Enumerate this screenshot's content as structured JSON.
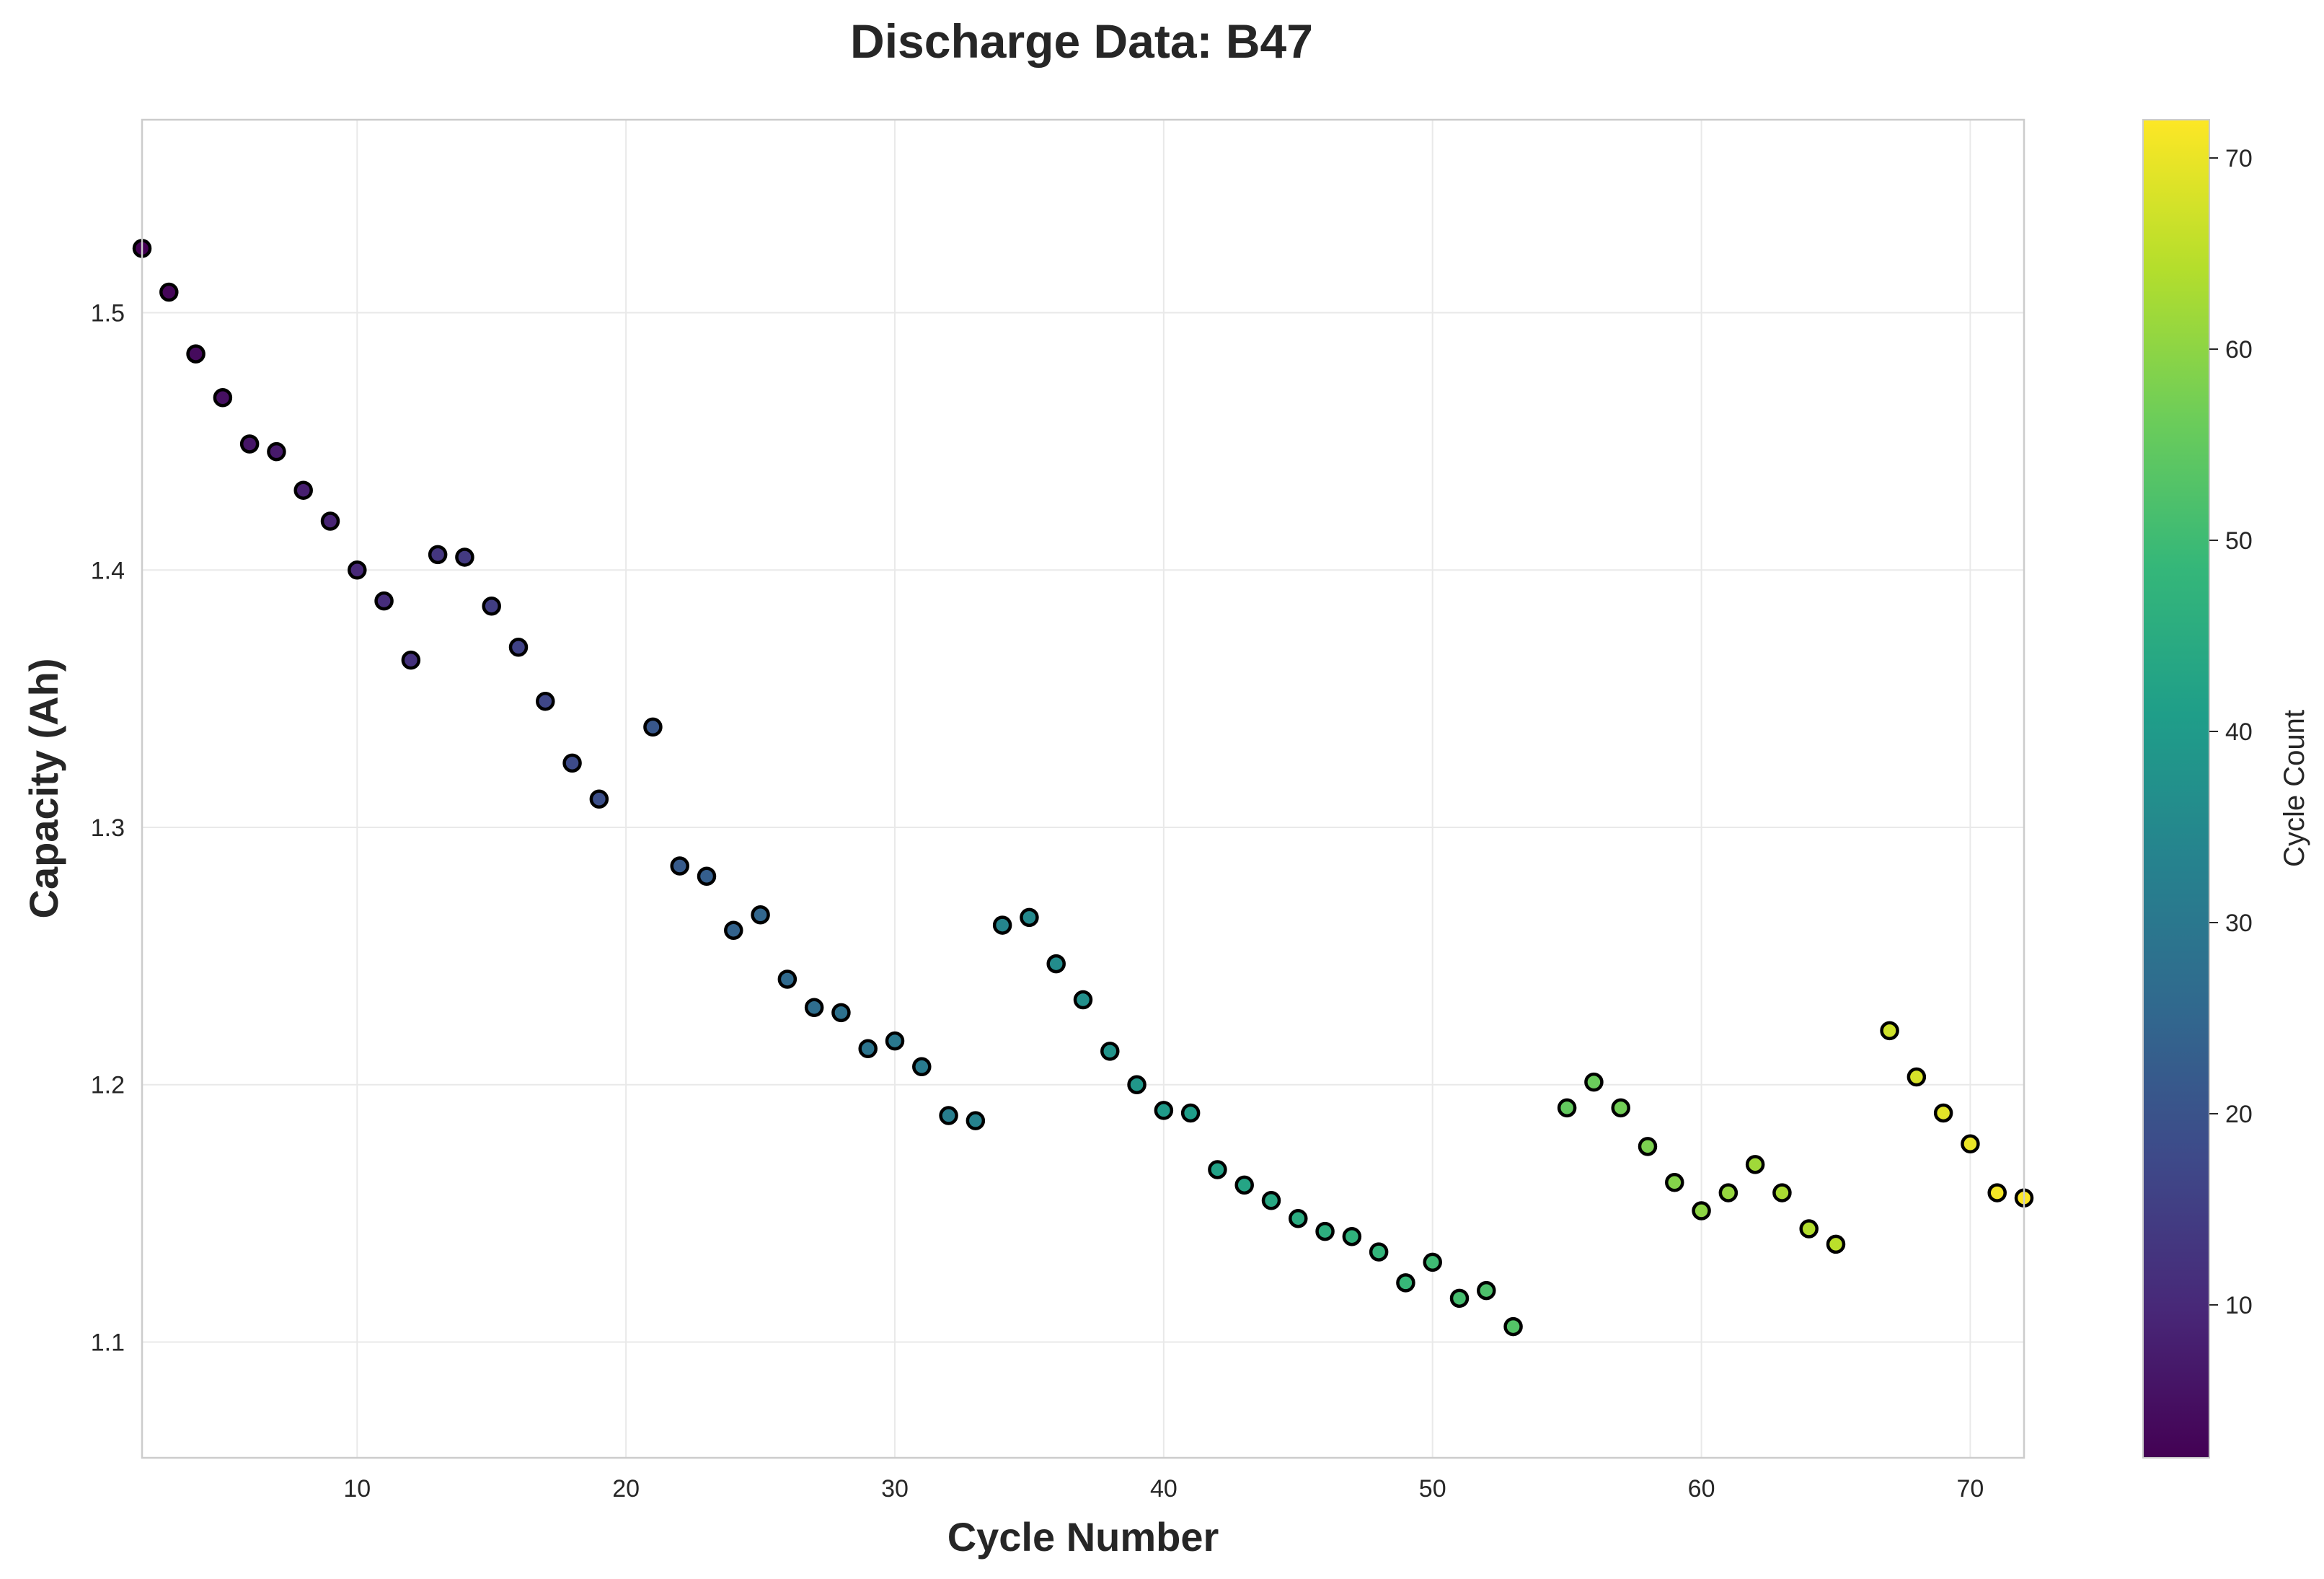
{
  "chart_data": {
    "type": "scatter",
    "title": "Discharge Data: B47",
    "xlabel": "Cycle Number",
    "ylabel": "Capacity (Ah)",
    "xlim": [
      2,
      72
    ],
    "ylim": [
      1.055,
      1.575
    ],
    "x_ticks": [
      10,
      20,
      30,
      40,
      50,
      60,
      70
    ],
    "y_ticks": [
      1.1,
      1.2,
      1.3,
      1.4,
      1.5
    ],
    "grid": true,
    "colormap": "viridis",
    "colorbar": {
      "label": "Cycle Count",
      "range": [
        2,
        72
      ],
      "ticks": [
        10,
        20,
        30,
        40,
        50,
        60,
        70
      ]
    },
    "marker_edge_color": "#000000",
    "series": [
      {
        "x": [
          2,
          3,
          4,
          5,
          6,
          7,
          8,
          9,
          10,
          11,
          12,
          13,
          14,
          15,
          16,
          17,
          18,
          19,
          21,
          22,
          23,
          24,
          25,
          26,
          27,
          28,
          29,
          30,
          31,
          32,
          33,
          34,
          35,
          36,
          37,
          38,
          39,
          40,
          41,
          42,
          43,
          44,
          45,
          46,
          47,
          48,
          49,
          50,
          51,
          52,
          53,
          55,
          56,
          57,
          58,
          59,
          60,
          61,
          62,
          63,
          64,
          65,
          67,
          68,
          69,
          70,
          71,
          72
        ],
        "y": [
          1.525,
          1.508,
          1.484,
          1.467,
          1.449,
          1.446,
          1.431,
          1.419,
          1.4,
          1.388,
          1.365,
          1.406,
          1.405,
          1.386,
          1.37,
          1.349,
          1.325,
          1.311,
          1.339,
          1.285,
          1.281,
          1.26,
          1.266,
          1.241,
          1.23,
          1.228,
          1.214,
          1.217,
          1.207,
          1.188,
          1.186,
          1.262,
          1.265,
          1.247,
          1.233,
          1.213,
          1.2,
          1.19,
          1.189,
          1.167,
          1.161,
          1.155,
          1.148,
          1.143,
          1.141,
          1.135,
          1.123,
          1.131,
          1.117,
          1.12,
          1.106,
          1.191,
          1.201,
          1.191,
          1.176,
          1.162,
          1.151,
          1.158,
          1.169,
          1.158,
          1.144,
          1.138,
          1.221,
          1.203,
          1.189,
          1.177,
          1.158,
          1.156
        ]
      }
    ]
  }
}
